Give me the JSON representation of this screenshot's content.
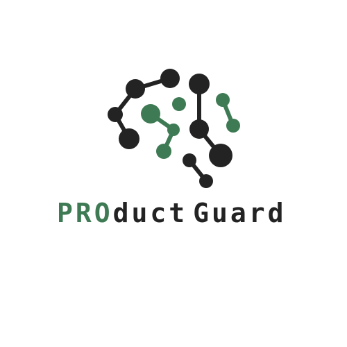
{
  "logo": {
    "icon": "brain-circuit-icon",
    "colors": {
      "dark": "#232323",
      "accent": "#3e7b54",
      "background": "#ffffff"
    }
  },
  "wordmark": {
    "part_accent": "PRO",
    "part_dark_1": "duct",
    "part_dark_2": "Guard"
  }
}
